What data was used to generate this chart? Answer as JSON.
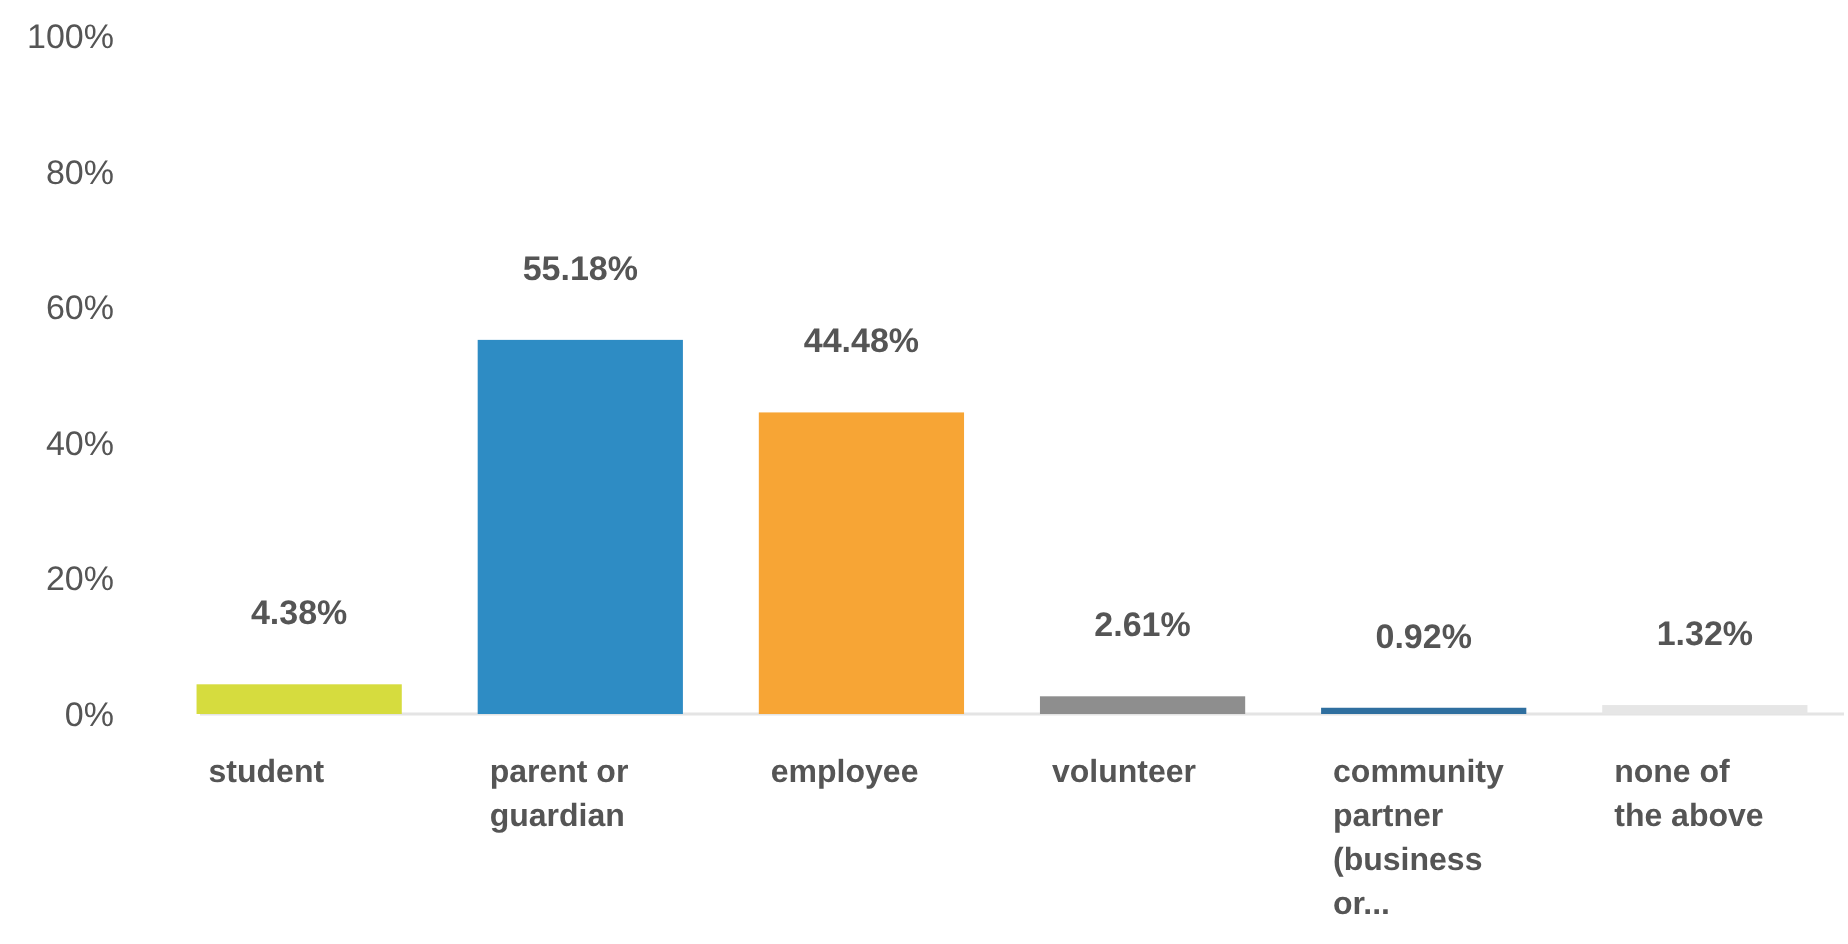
{
  "chart_data": {
    "type": "bar",
    "categories": [
      "student",
      "parent or guardian",
      "employee",
      "volunteer",
      "community partner (business or...",
      "none of the above"
    ],
    "values": [
      4.38,
      55.18,
      44.48,
      2.61,
      0.92,
      1.32
    ],
    "value_labels": [
      "4.38%",
      "55.18%",
      "44.48%",
      "2.61%",
      "0.92%",
      "1.32%"
    ],
    "colors": [
      "#d6dc3e",
      "#2e8cc4",
      "#f7a535",
      "#8e8e8e",
      "#2f6f9f",
      "#e6e6e6"
    ],
    "ylim": [
      0,
      100
    ],
    "yticks": [
      {
        "value": 0,
        "label": "0%"
      },
      {
        "value": 20,
        "label": "20%"
      },
      {
        "value": 40,
        "label": "40%"
      },
      {
        "value": 60,
        "label": "60%"
      },
      {
        "value": 80,
        "label": "80%"
      },
      {
        "value": 100,
        "label": "100%"
      }
    ],
    "grid": false
  }
}
